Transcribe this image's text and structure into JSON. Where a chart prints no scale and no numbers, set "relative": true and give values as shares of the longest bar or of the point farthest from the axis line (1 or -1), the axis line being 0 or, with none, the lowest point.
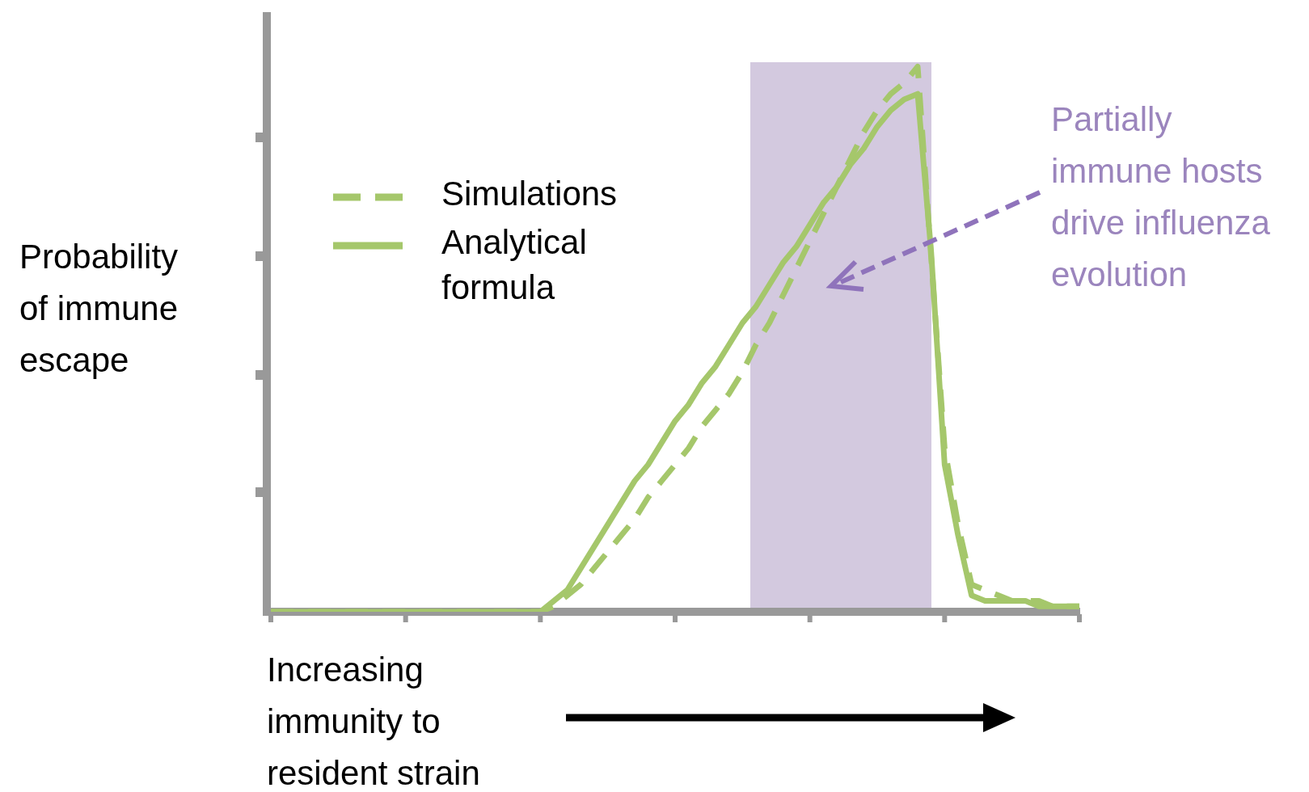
{
  "chart_data": {
    "type": "line",
    "relative": true,
    "ylabel": "Probability of immune escape",
    "xlabel": "Increasing immunity to resident strain",
    "annotations": [
      "Partially immune hosts drive influenza evolution"
    ],
    "grid": false,
    "legend": "top left",
    "marker": "none",
    "categories": [
      null,
      null,
      null,
      null,
      null,
      null,
      null,
      null,
      null,
      null,
      null,
      null,
      null,
      null,
      null,
      null,
      null,
      null,
      null,
      null,
      null,
      null,
      null,
      null,
      null,
      null,
      null,
      null,
      null,
      null,
      null,
      null,
      null,
      null,
      null,
      null,
      null,
      null,
      null,
      null,
      null,
      null,
      null,
      null,
      null,
      null,
      null,
      null,
      null,
      null,
      null,
      null,
      null,
      null,
      null,
      null,
      null,
      null,
      null,
      null,
      null
    ],
    "series": [
      {
        "name": "Simulations",
        "color": "#a5c76b",
        "line_style": "dashed",
        "values": [
          0,
          0,
          0,
          0,
          0,
          0,
          0,
          0,
          0,
          0,
          0,
          0,
          0,
          0,
          0,
          0,
          0,
          0,
          0,
          0,
          0,
          0.01,
          0.03,
          0.05,
          0.08,
          0.11,
          0.14,
          0.17,
          0.21,
          0.24,
          0.27,
          0.3,
          0.34,
          0.37,
          0.4,
          0.44,
          0.49,
          0.53,
          0.58,
          0.63,
          0.68,
          0.73,
          0.78,
          0.83,
          0.88,
          0.92,
          0.95,
          0.97,
          1,
          0.65,
          0.3,
          0.16,
          0.05,
          0.04,
          0.03,
          0.02,
          0.02,
          0.02,
          0.01,
          0.01,
          0.01
        ]
      },
      {
        "name": "Analytical formula",
        "color": "#a5c76b",
        "line_style": "solid",
        "values": [
          0,
          0,
          0,
          0,
          0,
          0,
          0,
          0,
          0,
          0,
          0,
          0,
          0,
          0,
          0,
          0,
          0,
          0,
          0,
          0,
          0,
          0.02,
          0.04,
          0.08,
          0.12,
          0.16,
          0.2,
          0.24,
          0.27,
          0.31,
          0.35,
          0.38,
          0.42,
          0.45,
          0.49,
          0.53,
          0.56,
          0.6,
          0.64,
          0.67,
          0.71,
          0.75,
          0.78,
          0.82,
          0.85,
          0.89,
          0.92,
          0.94,
          0.95,
          0.66,
          0.27,
          0.14,
          0.03,
          0.02,
          0.02,
          0.02,
          0.02,
          0.01,
          0.01,
          0.01,
          0.01
        ]
      }
    ]
  }
}
